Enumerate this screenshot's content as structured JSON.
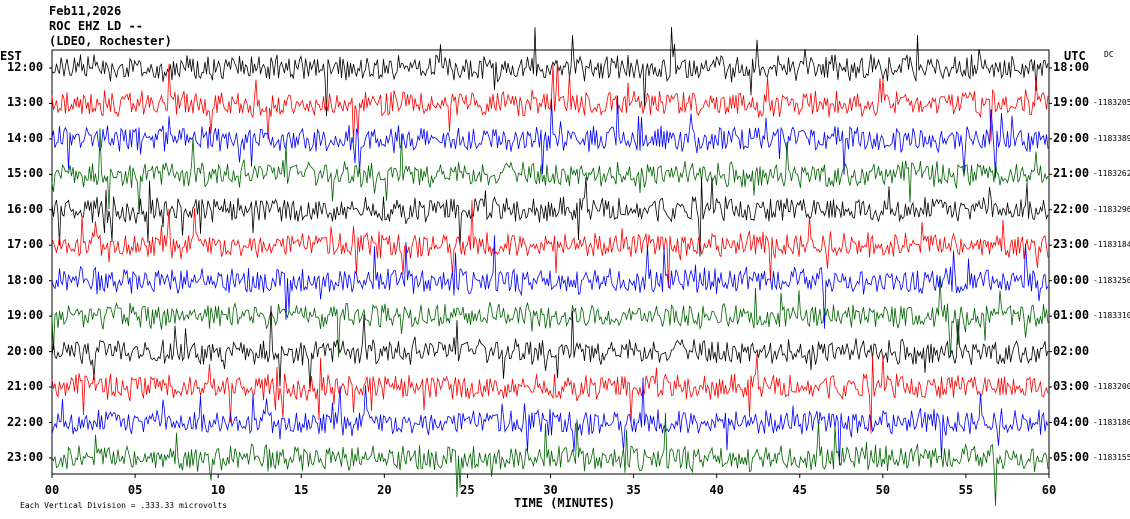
{
  "header": {
    "date": "Feb11,2026",
    "station": "ROC EHZ LD --",
    "location": "(LDEO, Rochester)"
  },
  "left_axis_title": "EST",
  "right_axis_title": "UTC",
  "dc_label": "DC",
  "footer": {
    "xlabel": "TIME (MINUTES)",
    "scale_note": "Each Vertical Division = .333.33 microvolts"
  },
  "colors": {
    "black": "#000000",
    "red": "#ff0000",
    "blue": "#0000ff",
    "green": "#006400"
  },
  "chart_data": {
    "type": "line",
    "title": "ROC EHZ LD -- (LDEO, Rochester) Feb11,2026",
    "xlabel": "TIME (MINUTES)",
    "xlim": [
      0,
      60
    ],
    "x_ticks": [
      "00",
      "05",
      "10",
      "15",
      "20",
      "25",
      "30",
      "35",
      "40",
      "45",
      "50",
      "55",
      "60"
    ],
    "rows": [
      {
        "est": "12:00",
        "utc": "18:00",
        "dc": "",
        "color": "black"
      },
      {
        "est": "13:00",
        "utc": "19:00",
        "dc": "-1183205",
        "color": "red"
      },
      {
        "est": "14:00",
        "utc": "20:00",
        "dc": "-1183389",
        "color": "blue"
      },
      {
        "est": "15:00",
        "utc": "21:00",
        "dc": "-1183262",
        "color": "green"
      },
      {
        "est": "16:00",
        "utc": "22:00",
        "dc": "-1183296",
        "color": "black"
      },
      {
        "est": "17:00",
        "utc": "23:00",
        "dc": "-1183184",
        "color": "red"
      },
      {
        "est": "18:00",
        "utc": "00:00",
        "dc": "-1183256",
        "color": "blue"
      },
      {
        "est": "19:00",
        "utc": "01:00",
        "dc": "-1183310",
        "color": "green"
      },
      {
        "est": "20:00",
        "utc": "02:00",
        "dc": "",
        "color": "black"
      },
      {
        "est": "21:00",
        "utc": "03:00",
        "dc": "-1183200",
        "color": "red"
      },
      {
        "est": "22:00",
        "utc": "04:00",
        "dc": "-1183186",
        "color": "blue"
      },
      {
        "est": "23:00",
        "utc": "05:00",
        "dc": "-1183155",
        "color": "green"
      }
    ]
  }
}
